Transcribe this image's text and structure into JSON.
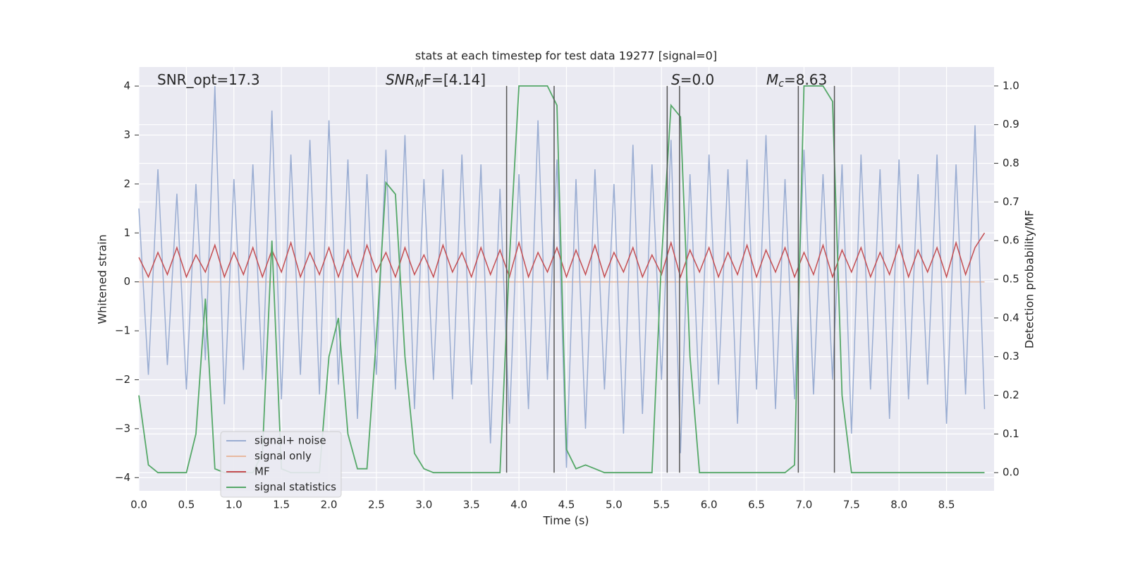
{
  "chart_data": {
    "type": "line",
    "title": "stats at each timestep for test data 19277 [signal=0]",
    "xlabel": "Time (s)",
    "ylabel": "Whitened strain",
    "y2label": "Detection probability/MF",
    "x": [
      0,
      0.1,
      0.2,
      0.3,
      0.4,
      0.5,
      0.6,
      0.7,
      0.8,
      0.9,
      1.0,
      1.1,
      1.2,
      1.3,
      1.4,
      1.5,
      1.6,
      1.7,
      1.8,
      1.9,
      2.0,
      2.1,
      2.2,
      2.3,
      2.4,
      2.5,
      2.6,
      2.7,
      2.8,
      2.9,
      3.0,
      3.1,
      3.2,
      3.3,
      3.4,
      3.5,
      3.6,
      3.7,
      3.8,
      3.9,
      4.0,
      4.1,
      4.2,
      4.3,
      4.4,
      4.5,
      4.6,
      4.7,
      4.8,
      4.9,
      5.0,
      5.1,
      5.2,
      5.3,
      5.4,
      5.5,
      5.6,
      5.7,
      5.8,
      5.9,
      6.0,
      6.1,
      6.2,
      6.3,
      6.4,
      6.5,
      6.6,
      6.7,
      6.8,
      6.9,
      7.0,
      7.1,
      7.2,
      7.3,
      7.4,
      7.5,
      7.6,
      7.7,
      7.8,
      7.9,
      8.0,
      8.1,
      8.2,
      8.3,
      8.4,
      8.5,
      8.6,
      8.7,
      8.8,
      8.9
    ],
    "series": [
      {
        "name": "signal only",
        "color": "#e8b9a0",
        "values": [
          0,
          0,
          0,
          0,
          0,
          0,
          0,
          0,
          0,
          0,
          0,
          0,
          0,
          0,
          0,
          0,
          0,
          0,
          0,
          0,
          0,
          0,
          0,
          0,
          0,
          0,
          0,
          0,
          0,
          0,
          0,
          0,
          0,
          0,
          0,
          0,
          0,
          0,
          0,
          0,
          0,
          0,
          0,
          0,
          0,
          0,
          0,
          0,
          0,
          0,
          0,
          0,
          0,
          0,
          0,
          0,
          0,
          0,
          0,
          0,
          0,
          0,
          0,
          0,
          0,
          0,
          0,
          0,
          0,
          0,
          0,
          0,
          0,
          0,
          0,
          0,
          0,
          0,
          0,
          0,
          0,
          0,
          0,
          0,
          0,
          0,
          0,
          0,
          0,
          0
        ]
      },
      {
        "name": "signal+ noise",
        "color": "#9aadd2",
        "values": [
          1.5,
          -1.9,
          2.3,
          -1.7,
          1.8,
          -2.2,
          2.0,
          -1.6,
          4.0,
          -2.5,
          2.1,
          -1.8,
          2.4,
          -2.0,
          3.5,
          -2.4,
          2.6,
          -1.9,
          2.9,
          -2.3,
          3.3,
          -2.1,
          2.5,
          -2.8,
          2.2,
          -1.9,
          2.7,
          -2.2,
          3.0,
          -2.6,
          2.1,
          -2.0,
          2.3,
          -2.4,
          2.6,
          -2.1,
          2.4,
          -3.3,
          1.9,
          -2.9,
          2.2,
          -2.6,
          3.3,
          -2.0,
          2.5,
          -3.8,
          2.1,
          -3.0,
          2.3,
          -2.2,
          2.0,
          -3.1,
          2.8,
          -2.7,
          2.4,
          -2.0,
          2.9,
          -3.5,
          2.2,
          -2.5,
          2.6,
          -2.1,
          2.3,
          -2.9,
          2.5,
          -2.2,
          3.0,
          -2.6,
          2.1,
          -2.4,
          2.7,
          -2.3,
          2.2,
          -2.0,
          2.4,
          -3.1,
          2.6,
          -2.2,
          2.3,
          -2.8,
          2.5,
          -2.4,
          2.2,
          -2.1,
          2.6,
          -2.9,
          2.4,
          -2.3,
          3.2,
          -2.6
        ]
      },
      {
        "name": "MF",
        "color": "#c44e52",
        "values": [
          0.5,
          0.1,
          0.6,
          0.15,
          0.7,
          0.1,
          0.55,
          0.2,
          0.75,
          0.1,
          0.6,
          0.15,
          0.7,
          0.1,
          0.65,
          0.2,
          0.8,
          0.1,
          0.6,
          0.15,
          0.7,
          0.1,
          0.65,
          0.1,
          0.75,
          0.2,
          0.6,
          0.1,
          0.7,
          0.15,
          0.55,
          0.1,
          0.75,
          0.2,
          0.6,
          0.1,
          0.7,
          0.15,
          0.65,
          0.1,
          0.8,
          0.1,
          0.6,
          0.2,
          0.7,
          0.1,
          0.65,
          0.15,
          0.75,
          0.1,
          0.6,
          0.2,
          0.7,
          0.1,
          0.55,
          0.15,
          0.8,
          0.1,
          0.65,
          0.2,
          0.7,
          0.1,
          0.6,
          0.15,
          0.75,
          0.1,
          0.65,
          0.2,
          0.7,
          0.1,
          0.6,
          0.15,
          0.75,
          0.1,
          0.65,
          0.2,
          0.7,
          0.1,
          0.6,
          0.15,
          0.75,
          0.1,
          0.65,
          0.2,
          0.7,
          0.1,
          0.8,
          0.15,
          0.7,
          1.0
        ]
      },
      {
        "name": "signal statistics",
        "color": "#55a868",
        "axis": "y2",
        "values": [
          0.2,
          0.02,
          0,
          0,
          0,
          0,
          0.1,
          0.45,
          0.01,
          0,
          0,
          0,
          0,
          0.05,
          0.6,
          0.01,
          0,
          0,
          0,
          0,
          0.3,
          0.4,
          0.1,
          0.01,
          0.01,
          0.35,
          0.75,
          0.72,
          0.3,
          0.05,
          0.01,
          0,
          0,
          0,
          0,
          0,
          0,
          0,
          0,
          0.55,
          1,
          1,
          1,
          1,
          0.95,
          0.06,
          0.01,
          0.02,
          0.01,
          0,
          0,
          0,
          0,
          0,
          0,
          0.55,
          0.95,
          0.92,
          0.3,
          0,
          0,
          0,
          0,
          0,
          0,
          0,
          0,
          0,
          0,
          0.02,
          1,
          1,
          1,
          0.96,
          0.2,
          0,
          0,
          0,
          0,
          0,
          0,
          0,
          0,
          0,
          0,
          0,
          0,
          0,
          0,
          0
        ]
      }
    ],
    "legend_order": [
      1,
      0,
      2,
      3
    ],
    "vlines": {
      "x": [
        3.87,
        4.37,
        5.56,
        5.69,
        6.94,
        7.32
      ],
      "range": [
        0,
        1
      ],
      "color": "#555555"
    },
    "annotations": [
      {
        "parts": [
          {
            "text": "SNR_opt=17.3"
          }
        ]
      },
      {
        "parts": [
          {
            "text": "SNR",
            "style": "italic"
          },
          {
            "text": "M",
            "style": "sub"
          },
          {
            "text": "F=[4.14]"
          }
        ]
      },
      {
        "parts": [
          {
            "text": "S",
            "style": "italic"
          },
          {
            "text": "=0.0"
          }
        ]
      },
      {
        "parts": [
          {
            "text": "M",
            "style": "italic"
          },
          {
            "text": "c",
            "style": "sub"
          },
          {
            "text": "=8.63"
          }
        ]
      }
    ],
    "xlim": [
      0,
      9.0
    ],
    "xticks": [
      {
        "value": 0,
        "label": "0.0"
      },
      {
        "value": 0.5,
        "label": "0.5"
      },
      {
        "value": 1,
        "label": "1.0"
      },
      {
        "value": 1.5,
        "label": "1.5"
      },
      {
        "value": 2,
        "label": "2.0"
      },
      {
        "value": 2.5,
        "label": "2.5"
      },
      {
        "value": 3,
        "label": "3.0"
      },
      {
        "value": 3.5,
        "label": "3.5"
      },
      {
        "value": 4,
        "label": "4.0"
      },
      {
        "value": 4.5,
        "label": "4.5"
      },
      {
        "value": 5,
        "label": "5.0"
      },
      {
        "value": 5.5,
        "label": "5.5"
      },
      {
        "value": 6,
        "label": "6.0"
      },
      {
        "value": 6.5,
        "label": "6.5"
      },
      {
        "value": 7,
        "label": "7.0"
      },
      {
        "value": 7.5,
        "label": "7.5"
      },
      {
        "value": 8,
        "label": "8.0"
      },
      {
        "value": 8.5,
        "label": "8.5"
      }
    ],
    "ylim": [
      -4.27,
      4.39
    ],
    "yticks": [
      {
        "value": -4,
        "label": "−4"
      },
      {
        "value": -3,
        "label": "−3"
      },
      {
        "value": -2,
        "label": "−2"
      },
      {
        "value": -1,
        "label": "−1"
      },
      0,
      1,
      2,
      3,
      4
    ],
    "y2lim": [
      -0.047,
      1.049
    ],
    "y2ticks": [
      {
        "value": 0,
        "label": "0.0"
      },
      {
        "value": 0.1,
        "label": "0.1"
      },
      {
        "value": 0.2,
        "label": "0.2"
      },
      {
        "value": 0.3,
        "label": "0.3"
      },
      {
        "value": 0.4,
        "label": "0.4"
      },
      {
        "value": 0.5,
        "label": "0.5"
      },
      {
        "value": 0.6,
        "label": "0.6"
      },
      {
        "value": 0.7,
        "label": "0.7"
      },
      {
        "value": 0.8,
        "label": "0.8"
      },
      {
        "value": 0.9,
        "label": "0.9"
      },
      {
        "value": 1,
        "label": "1.0"
      }
    ],
    "grid": true,
    "legend_loc": "lower left"
  }
}
